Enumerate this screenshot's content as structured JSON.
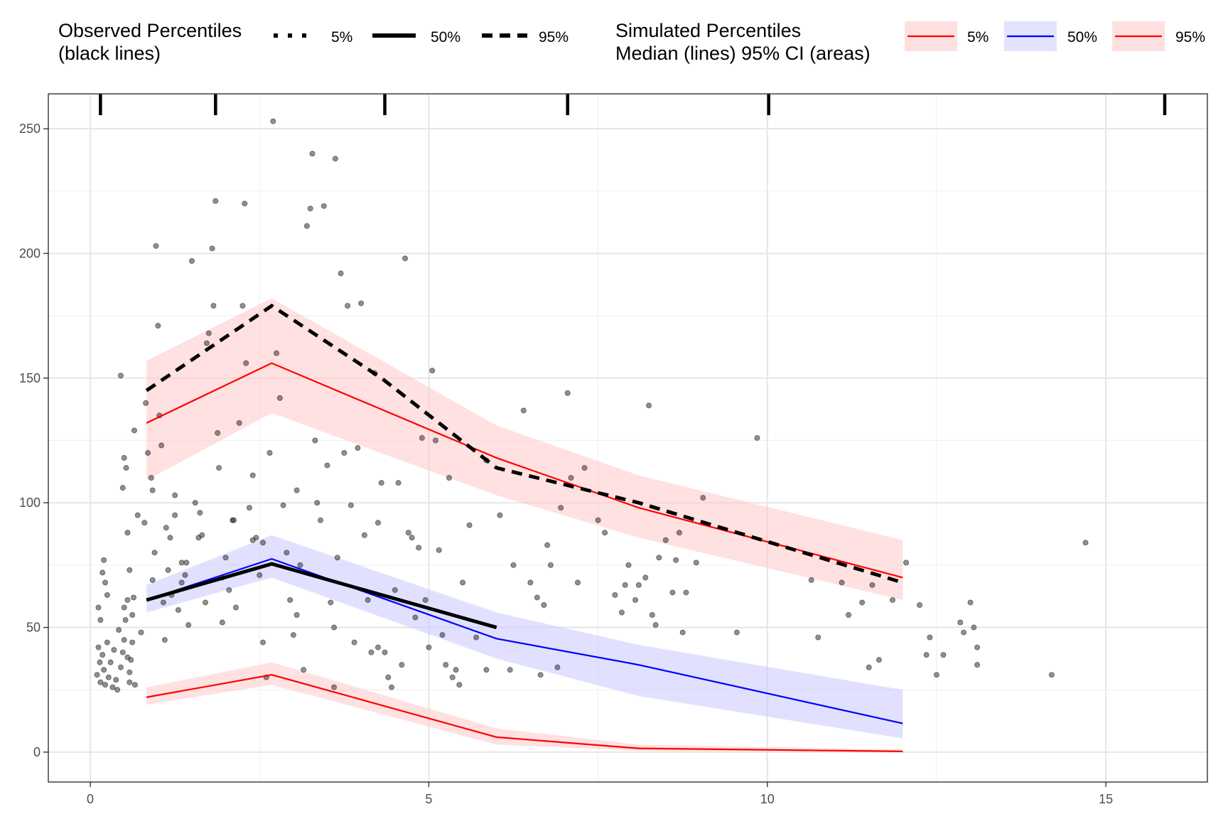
{
  "legend": {
    "observed_title_line1": "Observed Percentiles",
    "observed_title_line2": "(black lines)",
    "observed_items": [
      "5%",
      "50%",
      "95%"
    ],
    "simulated_title_line1": "Simulated Percentiles",
    "simulated_title_line2": "Median (lines) 95% CI (areas)",
    "simulated_items": [
      "5%",
      "50%",
      "95%"
    ]
  },
  "chart_data": {
    "type": "line",
    "title": "",
    "xlabel": "",
    "ylabel": "",
    "xlim": [
      -0.62,
      16.5
    ],
    "ylim": [
      -12,
      264
    ],
    "xticks": [
      0,
      5,
      10,
      15
    ],
    "yticks": [
      0,
      50,
      100,
      150,
      200,
      250
    ],
    "grid": true,
    "legend_position": "top",
    "colors": {
      "sim_5": "#ff0000",
      "sim_50": "#0000ff",
      "sim_95": "#ff0000",
      "band_5": "#ffc8c8",
      "band_50": "#c8c8ff",
      "band_95": "#ffc8c8",
      "observed": "#000000",
      "points": "#333333"
    },
    "bin_boundaries": [
      0.15,
      1.85,
      4.35,
      7.05,
      10.02,
      15.87
    ],
    "bin_midpoints": [
      0.83,
      2.68,
      6.0,
      8.1,
      12.0
    ],
    "simulated": [
      {
        "name": "5%",
        "median": [
          22,
          31,
          6,
          1.5,
          0.3
        ],
        "lower": [
          19,
          27,
          3,
          0.5,
          0
        ],
        "upper": [
          26,
          36,
          9.5,
          3,
          1
        ]
      },
      {
        "name": "50%",
        "median": [
          61,
          77.5,
          45.5,
          35,
          11.5
        ],
        "lower": [
          56,
          70,
          37.5,
          22.5,
          5.5
        ],
        "upper": [
          67,
          87,
          56,
          43,
          25
        ]
      },
      {
        "name": "95%",
        "median": [
          132,
          156,
          118,
          98,
          70
        ],
        "lower": [
          109,
          136,
          103,
          86,
          61
        ],
        "upper": [
          157,
          182,
          131,
          111,
          85
        ]
      }
    ],
    "observed": [
      {
        "name": "5%",
        "x": [],
        "y": []
      },
      {
        "name": "50%",
        "x": [
          0.83,
          2.68,
          6.0
        ],
        "y": [
          61,
          75.5,
          50
        ]
      },
      {
        "name": "95%",
        "x": [
          0.83,
          2.68,
          4.3,
          6.0,
          8.1,
          12.0
        ],
        "y": [
          145,
          179,
          150,
          114,
          100,
          68
        ]
      }
    ],
    "points": [
      [
        0.1,
        31
      ],
      [
        0.12,
        42
      ],
      [
        0.14,
        36
      ],
      [
        0.15,
        28
      ],
      [
        0.18,
        39
      ],
      [
        0.2,
        33
      ],
      [
        0.22,
        27
      ],
      [
        0.25,
        44
      ],
      [
        0.27,
        30
      ],
      [
        0.3,
        36
      ],
      [
        0.33,
        26
      ],
      [
        0.35,
        41
      ],
      [
        0.38,
        29
      ],
      [
        0.42,
        49
      ],
      [
        0.45,
        34
      ],
      [
        0.48,
        40
      ],
      [
        0.5,
        45
      ],
      [
        0.52,
        53
      ],
      [
        0.55,
        38
      ],
      [
        0.58,
        28
      ],
      [
        0.6,
        37
      ],
      [
        0.62,
        55
      ],
      [
        0.64,
        62
      ],
      [
        0.66,
        27
      ],
      [
        0.5,
        58
      ],
      [
        0.55,
        61
      ],
      [
        0.58,
        73
      ],
      [
        0.12,
        58
      ],
      [
        0.15,
        53
      ],
      [
        0.18,
        72
      ],
      [
        0.2,
        77
      ],
      [
        0.22,
        68
      ],
      [
        0.25,
        63
      ],
      [
        0.45,
        151
      ],
      [
        0.48,
        106
      ],
      [
        0.5,
        118
      ],
      [
        0.53,
        114
      ],
      [
        0.55,
        88
      ],
      [
        0.58,
        32
      ],
      [
        0.62,
        44
      ],
      [
        0.65,
        129
      ],
      [
        0.7,
        95
      ],
      [
        0.75,
        48
      ],
      [
        0.8,
        92
      ],
      [
        0.82,
        140
      ],
      [
        0.85,
        120
      ],
      [
        0.9,
        110
      ],
      [
        0.92,
        105
      ],
      [
        0.95,
        80
      ],
      [
        0.97,
        203
      ],
      [
        1.0,
        171
      ],
      [
        1.02,
        135
      ],
      [
        1.05,
        123
      ],
      [
        1.08,
        60
      ],
      [
        1.1,
        45
      ],
      [
        1.12,
        90
      ],
      [
        1.15,
        73
      ],
      [
        1.18,
        86
      ],
      [
        1.2,
        63
      ],
      [
        1.25,
        103
      ],
      [
        1.3,
        57
      ],
      [
        1.35,
        76
      ],
      [
        1.4,
        71
      ],
      [
        1.45,
        51
      ],
      [
        1.5,
        197
      ],
      [
        1.55,
        100
      ],
      [
        1.6,
        86
      ],
      [
        1.65,
        87
      ],
      [
        1.7,
        60
      ],
      [
        1.72,
        164
      ],
      [
        1.75,
        168
      ],
      [
        1.8,
        202
      ],
      [
        1.82,
        179
      ],
      [
        1.85,
        221
      ],
      [
        1.88,
        128
      ],
      [
        1.9,
        114
      ],
      [
        1.95,
        70
      ],
      [
        2.0,
        78
      ],
      [
        2.05,
        65
      ],
      [
        2.1,
        93
      ],
      [
        2.15,
        58
      ],
      [
        2.2,
        132
      ],
      [
        2.25,
        179
      ],
      [
        2.28,
        220
      ],
      [
        2.3,
        156
      ],
      [
        2.35,
        98
      ],
      [
        2.4,
        111
      ],
      [
        2.45,
        86
      ],
      [
        2.5,
        71
      ],
      [
        2.55,
        44
      ],
      [
        2.6,
        30
      ],
      [
        2.65,
        120
      ],
      [
        2.7,
        253
      ],
      [
        2.75,
        160
      ],
      [
        2.8,
        142
      ],
      [
        2.85,
        99
      ],
      [
        2.9,
        80
      ],
      [
        2.95,
        61
      ],
      [
        3.0,
        47
      ],
      [
        3.05,
        105
      ],
      [
        3.1,
        75
      ],
      [
        3.15,
        33
      ],
      [
        3.2,
        211
      ],
      [
        3.25,
        218
      ],
      [
        3.28,
        240
      ],
      [
        3.32,
        125
      ],
      [
        3.35,
        100
      ],
      [
        3.4,
        93
      ],
      [
        3.45,
        219
      ],
      [
        3.5,
        115
      ],
      [
        3.55,
        60
      ],
      [
        3.6,
        26
      ],
      [
        3.62,
        238
      ],
      [
        3.65,
        78
      ],
      [
        3.7,
        192
      ],
      [
        3.75,
        120
      ],
      [
        3.8,
        179
      ],
      [
        3.85,
        99
      ],
      [
        3.9,
        44
      ],
      [
        3.95,
        122
      ],
      [
        4.0,
        180
      ],
      [
        4.05,
        87
      ],
      [
        4.1,
        61
      ],
      [
        4.15,
        40
      ],
      [
        4.2,
        152
      ],
      [
        4.25,
        92
      ],
      [
        4.3,
        108
      ],
      [
        4.35,
        40
      ],
      [
        4.4,
        30
      ],
      [
        4.45,
        26
      ],
      [
        4.5,
        65
      ],
      [
        4.55,
        108
      ],
      [
        4.6,
        35
      ],
      [
        4.65,
        198
      ],
      [
        4.7,
        88
      ],
      [
        4.75,
        86
      ],
      [
        4.8,
        54
      ],
      [
        4.85,
        82
      ],
      [
        4.9,
        126
      ],
      [
        4.95,
        61
      ],
      [
        5.0,
        42
      ],
      [
        5.05,
        153
      ],
      [
        5.1,
        125
      ],
      [
        5.15,
        81
      ],
      [
        5.2,
        47
      ],
      [
        5.25,
        35
      ],
      [
        5.3,
        110
      ],
      [
        5.35,
        30
      ],
      [
        5.4,
        33
      ],
      [
        5.45,
        27
      ],
      [
        5.5,
        68
      ],
      [
        5.6,
        91
      ],
      [
        5.7,
        46
      ],
      [
        5.85,
        117
      ],
      [
        6.05,
        95
      ],
      [
        6.2,
        33
      ],
      [
        6.25,
        75
      ],
      [
        6.4,
        137
      ],
      [
        6.5,
        68
      ],
      [
        6.6,
        62
      ],
      [
        6.65,
        31
      ],
      [
        6.7,
        59
      ],
      [
        6.75,
        83
      ],
      [
        6.8,
        75
      ],
      [
        6.9,
        34
      ],
      [
        6.95,
        98
      ],
      [
        7.05,
        144
      ],
      [
        7.1,
        110
      ],
      [
        7.2,
        68
      ],
      [
        7.3,
        114
      ],
      [
        7.5,
        93
      ],
      [
        7.6,
        88
      ],
      [
        7.75,
        63
      ],
      [
        7.85,
        56
      ],
      [
        7.9,
        67
      ],
      [
        7.95,
        75
      ],
      [
        8.05,
        61
      ],
      [
        8.1,
        67
      ],
      [
        8.2,
        70
      ],
      [
        8.25,
        139
      ],
      [
        8.3,
        55
      ],
      [
        8.35,
        51
      ],
      [
        8.4,
        78
      ],
      [
        8.5,
        85
      ],
      [
        8.6,
        64
      ],
      [
        8.65,
        77
      ],
      [
        8.7,
        88
      ],
      [
        8.75,
        48
      ],
      [
        8.8,
        64
      ],
      [
        8.95,
        76
      ],
      [
        9.05,
        102
      ],
      [
        9.55,
        48
      ],
      [
        9.85,
        126
      ],
      [
        10.65,
        69
      ],
      [
        10.75,
        46
      ],
      [
        11.1,
        68
      ],
      [
        11.2,
        55
      ],
      [
        11.4,
        60
      ],
      [
        11.55,
        67
      ],
      [
        11.5,
        34
      ],
      [
        11.65,
        37
      ],
      [
        11.85,
        61
      ],
      [
        12.05,
        76
      ],
      [
        12.25,
        59
      ],
      [
        12.35,
        39
      ],
      [
        12.4,
        46
      ],
      [
        12.5,
        31
      ],
      [
        12.6,
        39
      ],
      [
        12.85,
        52
      ],
      [
        12.9,
        48
      ],
      [
        13.0,
        60
      ],
      [
        13.05,
        50
      ],
      [
        13.1,
        42
      ],
      [
        13.1,
        35
      ],
      [
        14.2,
        31
      ],
      [
        14.7,
        84
      ],
      [
        5.85,
        33
      ],
      [
        0.4,
        25
      ],
      [
        1.35,
        68
      ],
      [
        2.4,
        85
      ],
      [
        3.05,
        55
      ],
      [
        3.6,
        50
      ],
      [
        4.25,
        42
      ],
      [
        1.25,
        95
      ],
      [
        1.62,
        96
      ],
      [
        2.12,
        93
      ],
      [
        2.55,
        84
      ],
      [
        0.92,
        69
      ],
      [
        1.42,
        76
      ],
      [
        1.95,
        52
      ]
    ]
  }
}
